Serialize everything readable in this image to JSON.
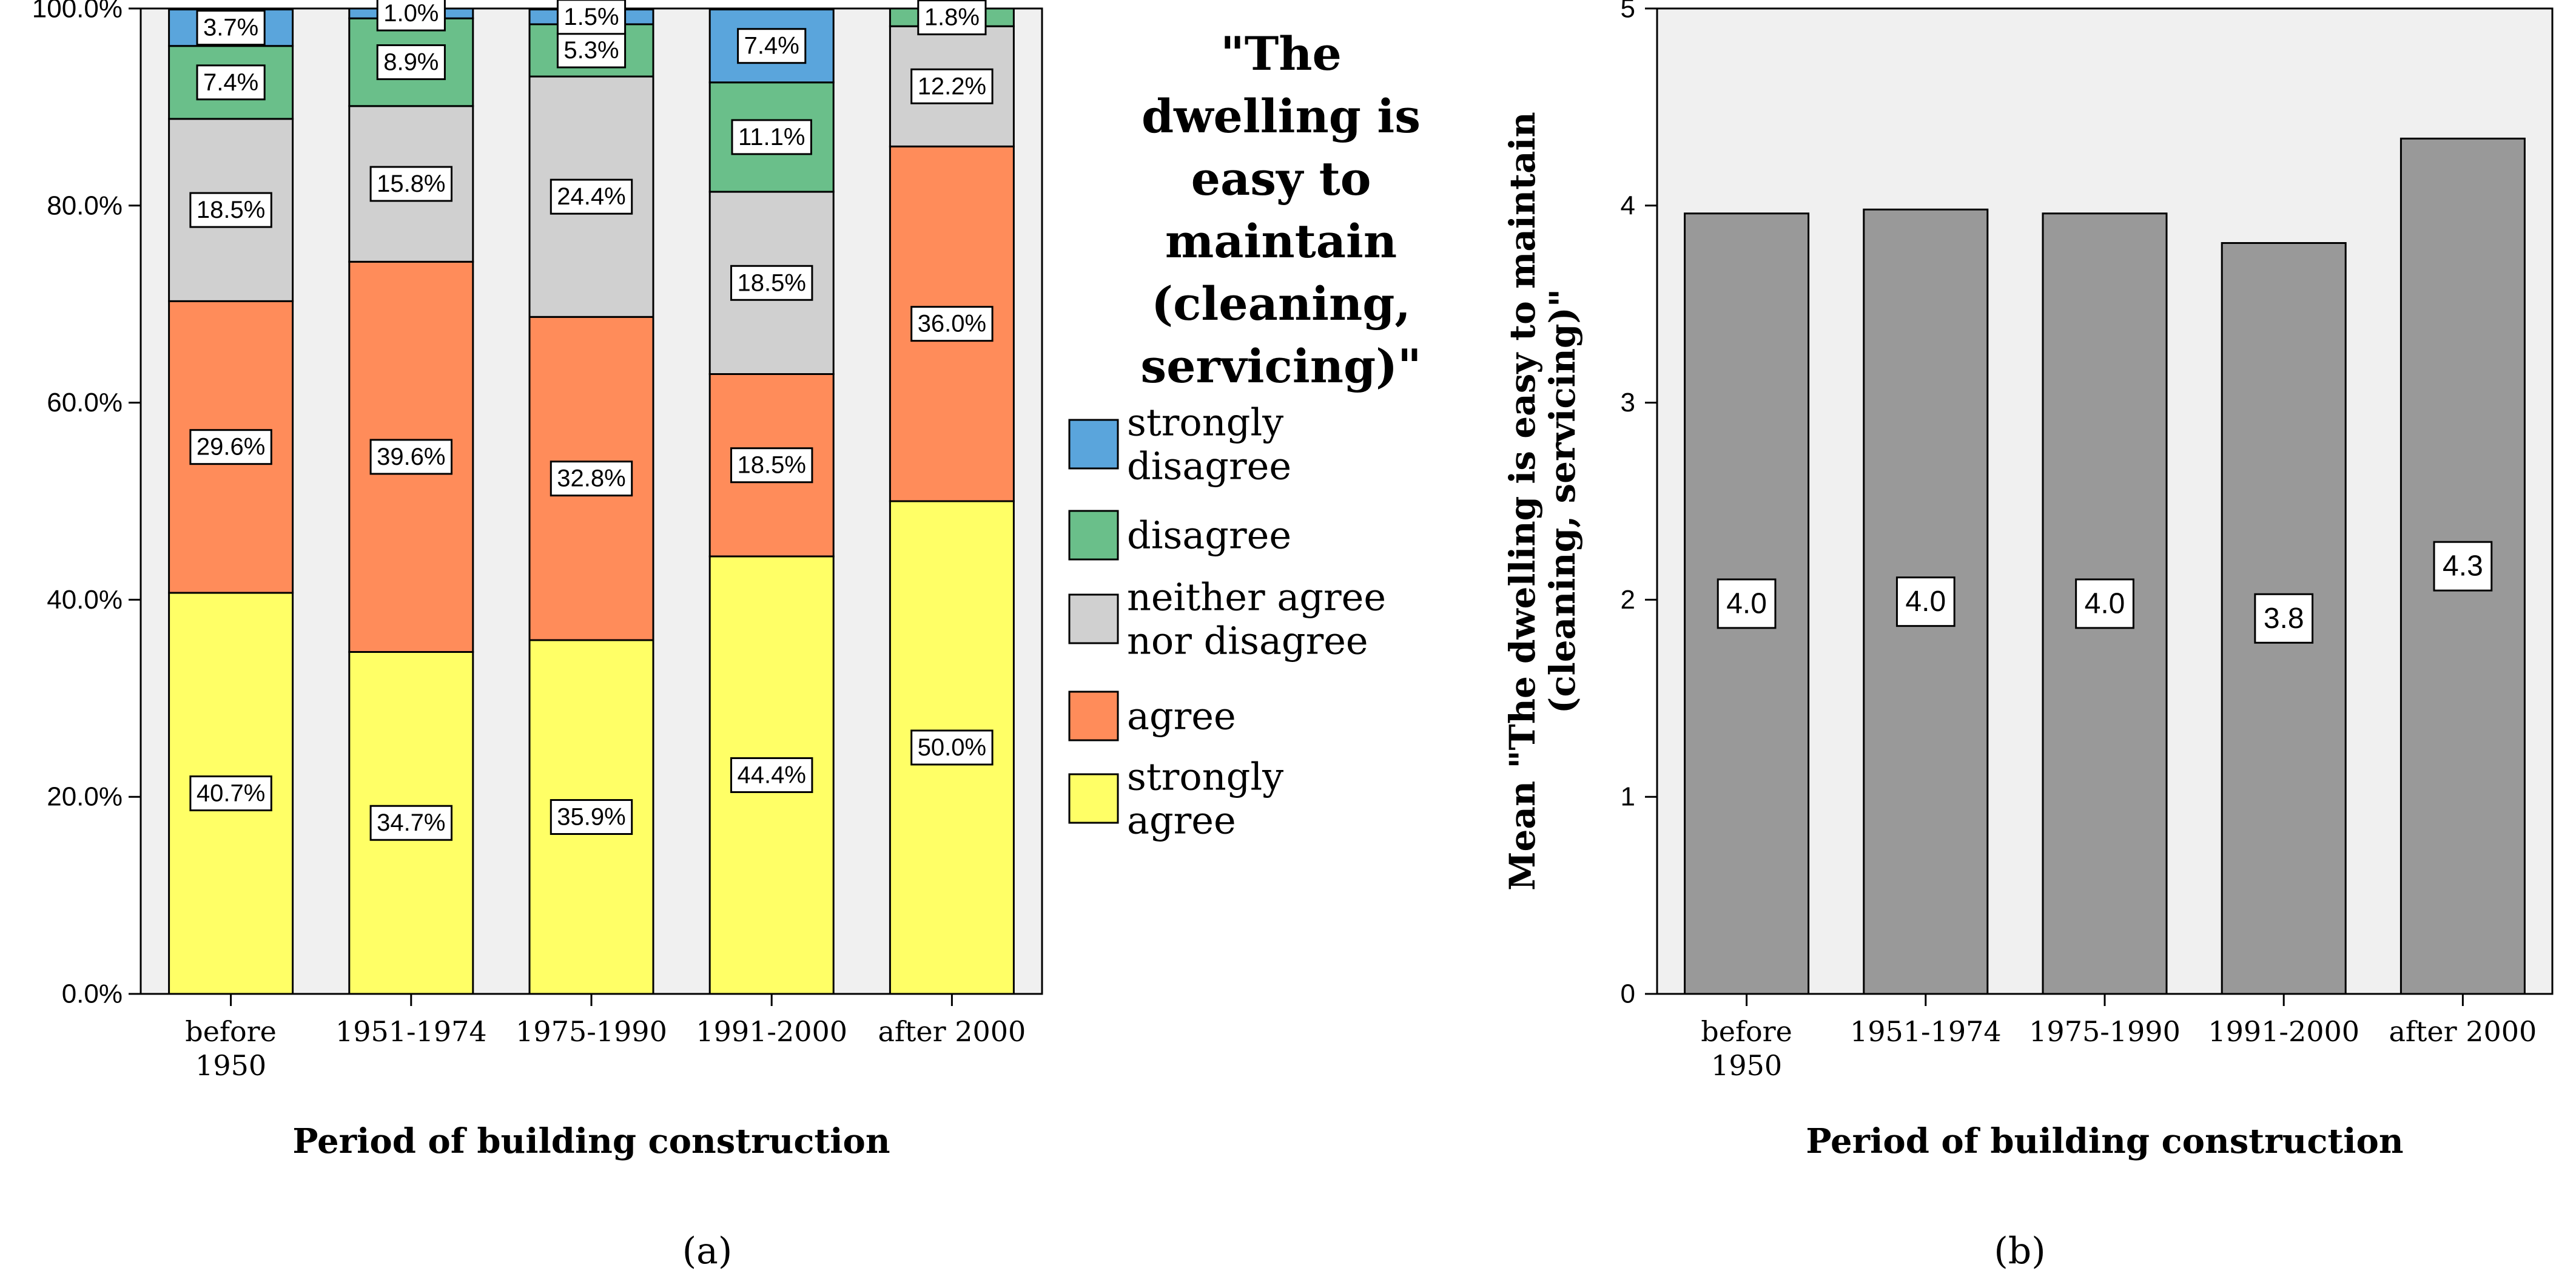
{
  "chart_data": [
    {
      "panel": "a",
      "type": "bar",
      "stacked": true,
      "percent": true,
      "categories": [
        "before 1950",
        "1951-1974",
        "1975-1990",
        "1991-2000",
        "after 2000"
      ],
      "category_lines": [
        [
          "before",
          "1950"
        ],
        [
          "1951-1974"
        ],
        [
          "1975-1990"
        ],
        [
          "1991-2000"
        ],
        [
          "after 2000"
        ]
      ],
      "series": [
        {
          "name": "strongly agree",
          "color": "#ffff66",
          "values": [
            40.7,
            34.7,
            35.9,
            44.4,
            50.0
          ],
          "labels": [
            "40.7%",
            "34.7%",
            "35.9%",
            "44.4%",
            "50.0%"
          ]
        },
        {
          "name": "agree",
          "color": "#ff8c5a",
          "values": [
            29.6,
            39.6,
            32.8,
            18.5,
            36.0
          ],
          "labels": [
            "29.6%",
            "39.6%",
            "32.8%",
            "18.5%",
            "36.0%"
          ]
        },
        {
          "name": "neither agree nor disagree",
          "color": "#d0d0d0",
          "values": [
            18.5,
            15.8,
            24.4,
            18.5,
            12.2
          ],
          "labels": [
            "18.5%",
            "15.8%",
            "24.4%",
            "18.5%",
            "12.2%"
          ]
        },
        {
          "name": "disagree",
          "color": "#6abf8a",
          "values": [
            7.4,
            8.9,
            5.3,
            11.1,
            1.8
          ],
          "labels": [
            "7.4%",
            "8.9%",
            "5.3%",
            "11.1%",
            "1.8%"
          ]
        },
        {
          "name": "strongly disagree",
          "color": "#5aa5dc",
          "values": [
            3.7,
            1.0,
            1.5,
            7.4,
            0.0
          ],
          "labels": [
            "3.7%",
            "1.0%",
            "1.5%",
            "7.4%",
            ""
          ]
        }
      ],
      "yticks": [
        "0.0%",
        "20.0%",
        "40.0%",
        "60.0%",
        "80.0%",
        "100.0%"
      ],
      "ylim": [
        0,
        100
      ],
      "xlabel": "Period of building construction",
      "ylabel": "",
      "legend_title_lines": [
        "\"The",
        "dwelling is",
        "easy to",
        "maintain",
        "(cleaning,",
        "servicing)\""
      ],
      "legend_entries": [
        {
          "series": "strongly disagree",
          "lines": [
            "strongly",
            "disagree"
          ]
        },
        {
          "series": "disagree",
          "lines": [
            "disagree"
          ]
        },
        {
          "series": "neither agree nor disagree",
          "lines": [
            "neither agree",
            "nor disagree"
          ]
        },
        {
          "series": "agree",
          "lines": [
            "agree"
          ]
        },
        {
          "series": "strongly agree",
          "lines": [
            "strongly",
            "agree"
          ]
        }
      ],
      "legend_position": "right",
      "caption": "(a)"
    },
    {
      "panel": "b",
      "type": "bar",
      "categories": [
        "before 1950",
        "1951-1974",
        "1975-1990",
        "1991-2000",
        "after 2000"
      ],
      "category_lines": [
        [
          "before",
          "1950"
        ],
        [
          "1951-1974"
        ],
        [
          "1975-1990"
        ],
        [
          "1991-2000"
        ],
        [
          "after 2000"
        ]
      ],
      "values": [
        3.96,
        3.98,
        3.96,
        3.81,
        4.34
      ],
      "labels": [
        "4.0",
        "4.0",
        "4.0",
        "3.8",
        "4.3"
      ],
      "bar_color": "#999999",
      "yticks": [
        "0",
        "1",
        "2",
        "3",
        "4",
        "5"
      ],
      "ylim": [
        0,
        5
      ],
      "xlabel": "Period of building construction",
      "ylabel_lines": [
        "Mean \"The dwelling is easy to maintain",
        "(cleaning, servicing)\""
      ],
      "caption": "(b)"
    }
  ]
}
